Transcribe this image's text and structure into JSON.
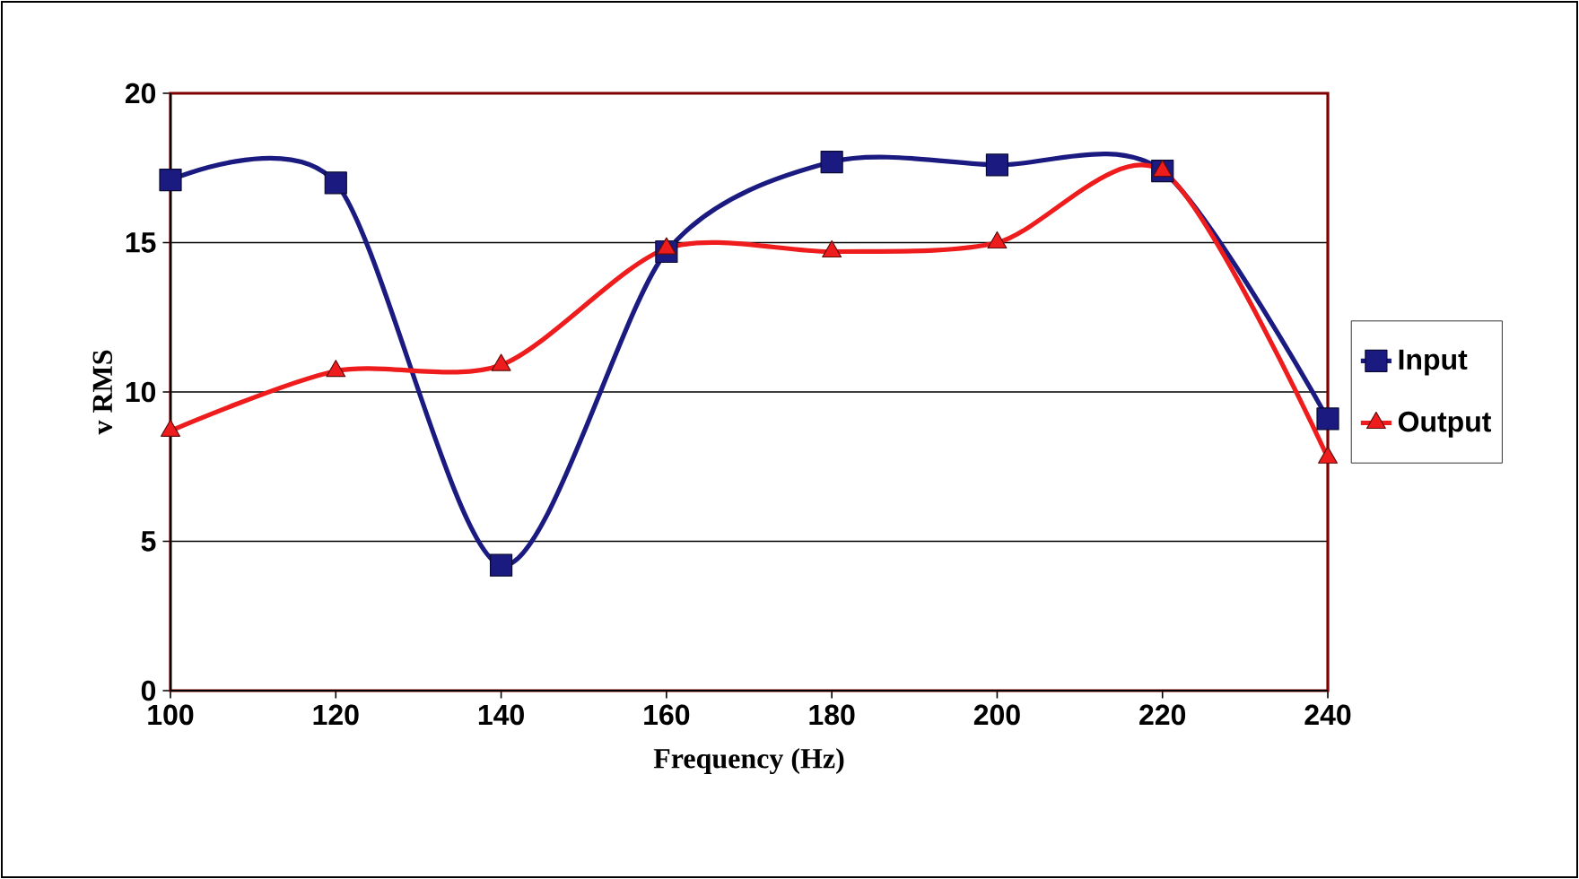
{
  "chart_data": {
    "type": "line",
    "xlabel": "Frequency (Hz)",
    "ylabel": "v RMS",
    "x": [
      100,
      120,
      140,
      160,
      180,
      200,
      220,
      240
    ],
    "series": [
      {
        "name": "Input",
        "color": "#1a1a80",
        "marker": "square",
        "values": [
          17.1,
          17.0,
          4.2,
          14.7,
          17.7,
          17.6,
          17.4,
          9.1
        ]
      },
      {
        "name": "Output",
        "color": "#ee1c1c",
        "marker": "triangle",
        "values": [
          8.7,
          10.7,
          10.9,
          14.8,
          14.7,
          15.0,
          17.4,
          7.8
        ]
      }
    ],
    "xlim": [
      100,
      240
    ],
    "xticks": [
      100,
      120,
      140,
      160,
      180,
      200,
      220,
      240
    ],
    "ylim": [
      0,
      20
    ],
    "yticks": [
      0,
      5,
      10,
      15,
      20
    ],
    "grid": "y",
    "legend": "right",
    "line_style": "solid"
  }
}
